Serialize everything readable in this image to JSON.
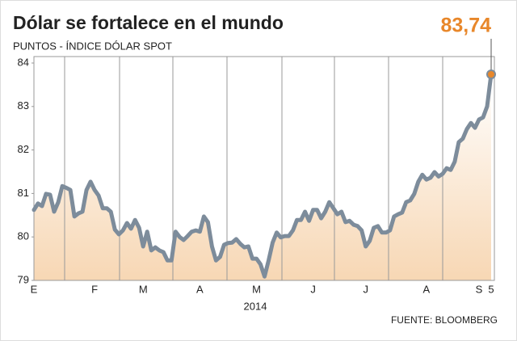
{
  "chart_data": {
    "type": "line",
    "title": "Dólar se fortalece en el mundo",
    "subtitle": "PUNTOS - ÍNDICE DÓLAR SPOT",
    "x_label": "2014",
    "source": "FUENTE: BLOOMBERG",
    "categories": [
      "E",
      null,
      null,
      null,
      null,
      null,
      null,
      null,
      null,
      null,
      null,
      null,
      null,
      null,
      null,
      "F",
      null,
      null,
      null,
      null,
      null,
      null,
      null,
      null,
      null,
      null,
      null,
      "M",
      null,
      null,
      null,
      null,
      null,
      null,
      null,
      null,
      null,
      null,
      null,
      null,
      null,
      "A",
      null,
      null,
      null,
      null,
      null,
      null,
      null,
      null,
      null,
      null,
      null,
      null,
      null,
      "M",
      null,
      null,
      null,
      null,
      null,
      null,
      null,
      null,
      null,
      null,
      null,
      null,
      null,
      "J",
      null,
      null,
      null,
      null,
      null,
      null,
      null,
      null,
      null,
      null,
      null,
      null,
      "J",
      null,
      null,
      null,
      null,
      null,
      null,
      null,
      null,
      null,
      null,
      null,
      null,
      null,
      null,
      "A",
      null,
      null,
      null,
      null,
      null,
      null,
      null,
      null,
      null,
      null,
      null,
      null,
      "S",
      null,
      null,
      "5"
    ],
    "series": [
      {
        "color": "#7d8c9b",
        "values": [
          80.62,
          80.77,
          80.71,
          80.99,
          80.97,
          80.58,
          80.8,
          81.17,
          81.13,
          81.08,
          80.47,
          80.54,
          80.58,
          81.08,
          81.27,
          81.08,
          80.95,
          80.66,
          80.66,
          80.58,
          80.17,
          80.06,
          80.15,
          80.32,
          80.19,
          80.39,
          80.21,
          79.78,
          80.12,
          79.69,
          79.76,
          79.69,
          79.65,
          79.46,
          79.46,
          80.12,
          80.0,
          79.93,
          80.02,
          80.12,
          80.15,
          80.12,
          80.47,
          80.34,
          79.78,
          79.46,
          79.54,
          79.82,
          79.86,
          79.87,
          79.95,
          79.84,
          79.76,
          79.78,
          79.5,
          79.5,
          79.37,
          79.09,
          79.46,
          79.87,
          80.1,
          79.99,
          80.02,
          80.02,
          80.15,
          80.39,
          80.39,
          80.58,
          80.37,
          80.62,
          80.62,
          80.43,
          80.58,
          80.8,
          80.66,
          80.52,
          80.58,
          80.34,
          80.37,
          80.28,
          80.25,
          80.15,
          79.78,
          79.91,
          80.21,
          80.25,
          80.1,
          80.1,
          80.15,
          80.47,
          80.52,
          80.56,
          80.8,
          80.84,
          80.99,
          81.27,
          81.43,
          81.32,
          81.36,
          81.49,
          81.39,
          81.45,
          81.58,
          81.54,
          81.73,
          82.18,
          82.26,
          82.48,
          82.62,
          82.51,
          82.7,
          82.75,
          83.0,
          83.74
        ],
        "value_labels": [
          null,
          null,
          null,
          null,
          null,
          null,
          null,
          null,
          null,
          null,
          null,
          null,
          null,
          null,
          null,
          null,
          null,
          null,
          null,
          null,
          null,
          null,
          null,
          null,
          null,
          null,
          null,
          null,
          null,
          null,
          null,
          null,
          null,
          null,
          null,
          null,
          null,
          null,
          null,
          null,
          null,
          null,
          null,
          null,
          null,
          null,
          null,
          null,
          null,
          null,
          null,
          null,
          null,
          null,
          null,
          null,
          null,
          null,
          null,
          null,
          null,
          null,
          null,
          null,
          null,
          null,
          null,
          null,
          null,
          null,
          null,
          null,
          null,
          null,
          null,
          null,
          null,
          null,
          null,
          null,
          null,
          null,
          null,
          null,
          null,
          null,
          null,
          null,
          null,
          null,
          null,
          null,
          null,
          null,
          null,
          null,
          null,
          null,
          null,
          null,
          null,
          null,
          null,
          null,
          null,
          null,
          null,
          null,
          null,
          null,
          null,
          null,
          null,
          "83,74"
        ],
        "label_color": "#e8872a"
      }
    ],
    "ylim": [
      79,
      84
    ],
    "yticks": [
      79,
      80,
      81,
      82,
      83,
      84
    ]
  }
}
